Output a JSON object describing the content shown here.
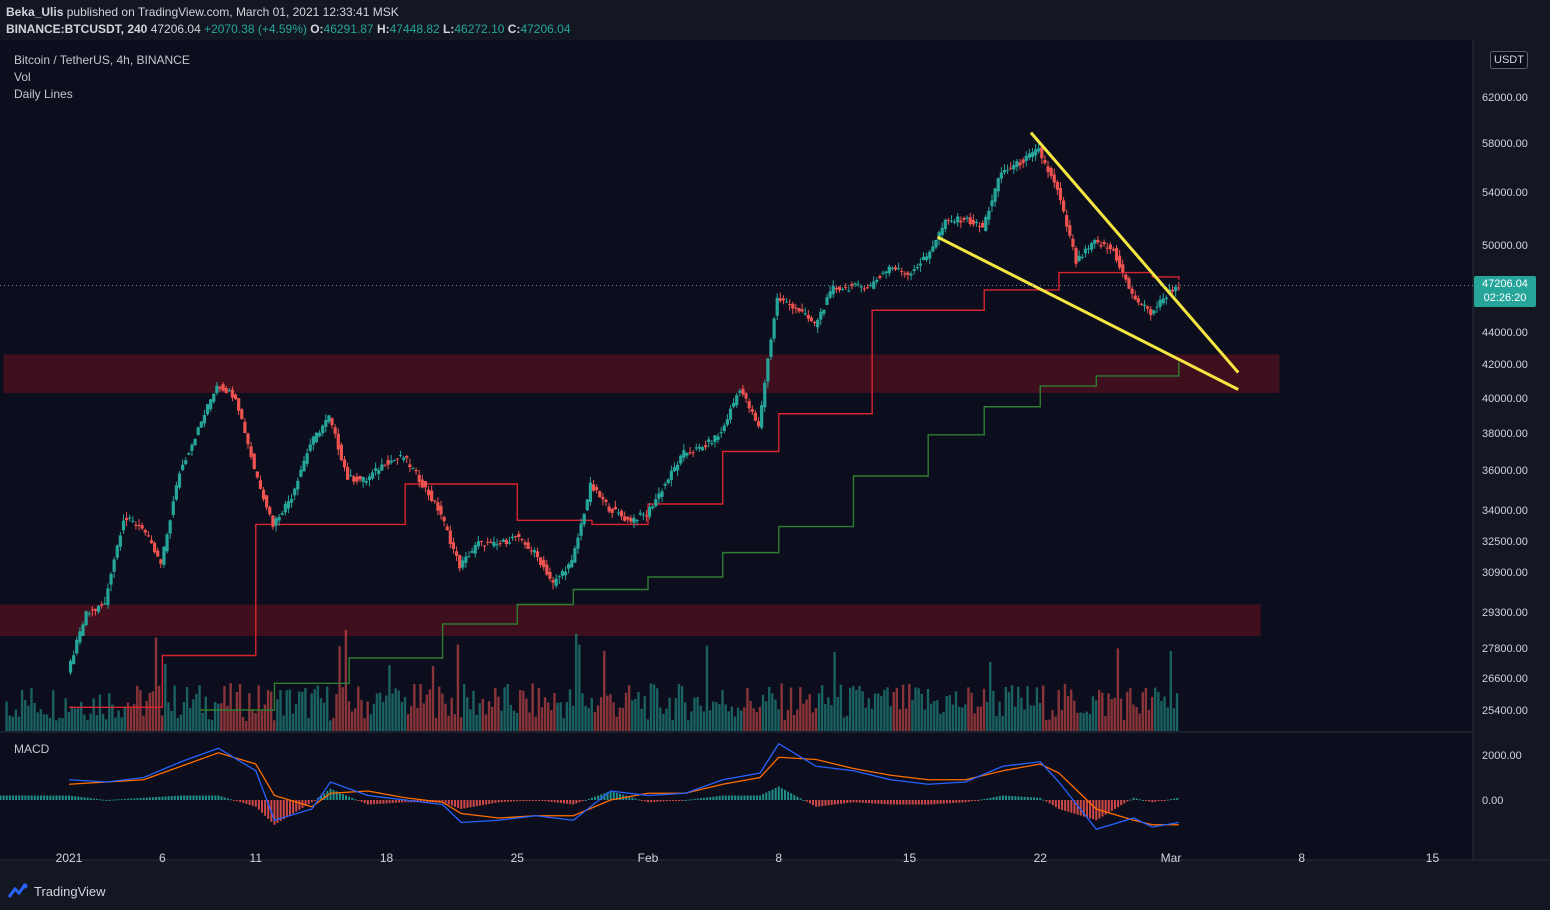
{
  "header": {
    "author": "Beka_Ulis",
    "published_text": "published on TradingView.com, March 01, 2021 12:33:41 MSK",
    "symbol": "BINANCE:BTCUSDT, 240",
    "last": "47206.04",
    "change": "+2070.38 (+4.59%)",
    "o_label": "O:",
    "o_value": "46291.87",
    "h_label": "H:",
    "h_value": "47448.82",
    "l_label": "L:",
    "l_value": "46272.10",
    "c_label": "C:",
    "c_value": "47206.04"
  },
  "legend": {
    "title": "Bitcoin / TetherUS, 4h, BINANCE",
    "vol": "Vol",
    "daily_lines": "Daily Lines",
    "macd": "MACD"
  },
  "currency_badge": "USDT",
  "last_price_tag": {
    "price": "47206.04",
    "countdown": "02:26:20"
  },
  "footer": {
    "brand": "TradingView"
  },
  "colors": {
    "background": "#0c0e1d",
    "up": "#26a69a",
    "down": "#ef5350",
    "zone": "#4a0f1f",
    "trendline": "#f5e642",
    "red_line": "#d8242f",
    "green_line": "#2e7d32",
    "macd_line": "#2962ff",
    "signal_line": "#ff6d00"
  },
  "chart_data": {
    "type": "candlestick",
    "title": "Bitcoin / TetherUS, 4h, BINANCE",
    "price_ticks": [
      "62000.00",
      "58000.00",
      "54000.00",
      "50000.00",
      "44000.00",
      "42000.00",
      "40000.00",
      "38000.00",
      "36000.00",
      "34000.00",
      "32500.00",
      "30900.00",
      "29300.00",
      "27800.00",
      "26600.00",
      "25400.00"
    ],
    "price_tick_values": [
      62000,
      58000,
      54000,
      50000,
      44000,
      42000,
      40000,
      38000,
      36000,
      34000,
      32500,
      30900,
      29300,
      27800,
      26600,
      25400
    ],
    "time_ticks": [
      {
        "label": "2021",
        "day": 0
      },
      {
        "label": "6",
        "day": 5
      },
      {
        "label": "11",
        "day": 10
      },
      {
        "label": "18",
        "day": 17
      },
      {
        "label": "25",
        "day": 24
      },
      {
        "label": "Feb",
        "day": 31
      },
      {
        "label": "8",
        "day": 38
      },
      {
        "label": "15",
        "day": 45
      },
      {
        "label": "22",
        "day": 52
      },
      {
        "label": "Mar",
        "day": 59
      },
      {
        "label": "8",
        "day": 66
      },
      {
        "label": "15",
        "day": 73
      }
    ],
    "price_path": [
      [
        0,
        26800
      ],
      [
        1,
        29200
      ],
      [
        2,
        29600
      ],
      [
        3,
        33600
      ],
      [
        4,
        33200
      ],
      [
        5,
        31300
      ],
      [
        6,
        35900
      ],
      [
        7,
        38200
      ],
      [
        8,
        40800
      ],
      [
        9,
        40100
      ],
      [
        10,
        36100
      ],
      [
        11,
        33300
      ],
      [
        12,
        34700
      ],
      [
        13,
        37400
      ],
      [
        14,
        38900
      ],
      [
        15,
        35600
      ],
      [
        16,
        35500
      ],
      [
        17,
        36400
      ],
      [
        18,
        36700
      ],
      [
        19,
        35300
      ],
      [
        20,
        33800
      ],
      [
        21,
        31200
      ],
      [
        22,
        32400
      ],
      [
        23,
        32300
      ],
      [
        24,
        32700
      ],
      [
        25,
        31900
      ],
      [
        26,
        30400
      ],
      [
        27,
        31400
      ],
      [
        28,
        35200
      ],
      [
        29,
        34100
      ],
      [
        30,
        33500
      ],
      [
        31,
        33800
      ],
      [
        32,
        35300
      ],
      [
        33,
        36900
      ],
      [
        34,
        37200
      ],
      [
        35,
        38000
      ],
      [
        36,
        40600
      ],
      [
        37,
        38300
      ],
      [
        38,
        46300
      ],
      [
        39,
        45700
      ],
      [
        40,
        44500
      ],
      [
        41,
        47000
      ],
      [
        42,
        47100
      ],
      [
        43,
        47200
      ],
      [
        44,
        48500
      ],
      [
        45,
        48000
      ],
      [
        46,
        49200
      ],
      [
        47,
        51700
      ],
      [
        48,
        52000
      ],
      [
        49,
        51300
      ],
      [
        50,
        55600
      ],
      [
        51,
        56400
      ],
      [
        52,
        57400
      ],
      [
        53,
        54100
      ],
      [
        54,
        48800
      ],
      [
        55,
        50200
      ],
      [
        56,
        49600
      ],
      [
        57,
        46500
      ],
      [
        58,
        45300
      ],
      [
        59,
        46800
      ],
      [
        59.42,
        47206.04
      ]
    ],
    "daily_red_line": [
      [
        0,
        25500
      ],
      [
        5,
        27500
      ],
      [
        10,
        33300
      ],
      [
        18,
        35300
      ],
      [
        24,
        33500
      ],
      [
        28,
        33300
      ],
      [
        31,
        34300
      ],
      [
        35,
        37000
      ],
      [
        38,
        39100
      ],
      [
        43,
        45500
      ],
      [
        49,
        46900
      ],
      [
        53,
        48100
      ],
      [
        58,
        47800
      ],
      [
        59.42,
        47600
      ]
    ],
    "daily_green_line": [
      [
        7,
        25400
      ],
      [
        11,
        26400
      ],
      [
        15,
        27400
      ],
      [
        20,
        28800
      ],
      [
        24,
        29600
      ],
      [
        27,
        30200
      ],
      [
        31,
        30700
      ],
      [
        35,
        31900
      ],
      [
        38,
        33200
      ],
      [
        42,
        35700
      ],
      [
        46,
        37900
      ],
      [
        49,
        39500
      ],
      [
        52,
        40700
      ],
      [
        55,
        41300
      ],
      [
        59.42,
        42100
      ]
    ],
    "zones": [
      {
        "from_day": -3.5,
        "to_day": 64.8,
        "low": 40300,
        "high": 42600
      },
      {
        "from_day": -4.5,
        "to_day": 63.8,
        "low": 28300,
        "high": 29600
      }
    ],
    "trendlines": [
      {
        "from": [
          51.5,
          58900
        ],
        "to": [
          62.6,
          41500
        ]
      },
      {
        "from": [
          46.5,
          50600
        ],
        "to": [
          62.6,
          40500
        ]
      }
    ],
    "macd_ticks": [
      {
        "label": "2000.00",
        "value": 2000
      },
      {
        "label": "0.00",
        "value": 0
      }
    ],
    "macd_path": [
      [
        0,
        900
      ],
      [
        2,
        800
      ],
      [
        4,
        1000
      ],
      [
        6,
        1700
      ],
      [
        8,
        2300
      ],
      [
        10,
        1300
      ],
      [
        11,
        -900
      ],
      [
        13,
        -400
      ],
      [
        14,
        800
      ],
      [
        16,
        200
      ],
      [
        18,
        0
      ],
      [
        20,
        -200
      ],
      [
        21,
        -1000
      ],
      [
        23,
        -900
      ],
      [
        25,
        -700
      ],
      [
        27,
        -900
      ],
      [
        29,
        400
      ],
      [
        31,
        200
      ],
      [
        33,
        300
      ],
      [
        35,
        900
      ],
      [
        37,
        1200
      ],
      [
        38,
        2500
      ],
      [
        40,
        1500
      ],
      [
        42,
        1300
      ],
      [
        44,
        900
      ],
      [
        46,
        700
      ],
      [
        48,
        800
      ],
      [
        50,
        1500
      ],
      [
        52,
        1700
      ],
      [
        53,
        800
      ],
      [
        55,
        -1300
      ],
      [
        57,
        -800
      ],
      [
        58,
        -1200
      ],
      [
        59.42,
        -1000
      ]
    ],
    "signal_path": [
      [
        0,
        700
      ],
      [
        2,
        800
      ],
      [
        4,
        900
      ],
      [
        6,
        1500
      ],
      [
        8,
        2100
      ],
      [
        10,
        1600
      ],
      [
        11,
        200
      ],
      [
        13,
        -300
      ],
      [
        14,
        300
      ],
      [
        16,
        400
      ],
      [
        18,
        100
      ],
      [
        20,
        -100
      ],
      [
        21,
        -600
      ],
      [
        23,
        -800
      ],
      [
        25,
        -700
      ],
      [
        27,
        -700
      ],
      [
        29,
        0
      ],
      [
        31,
        300
      ],
      [
        33,
        300
      ],
      [
        35,
        700
      ],
      [
        37,
        1000
      ],
      [
        38,
        1900
      ],
      [
        40,
        1800
      ],
      [
        42,
        1400
      ],
      [
        44,
        1100
      ],
      [
        46,
        900
      ],
      [
        48,
        900
      ],
      [
        50,
        1300
      ],
      [
        52,
        1600
      ],
      [
        53,
        1200
      ],
      [
        55,
        -400
      ],
      [
        57,
        -900
      ],
      [
        58,
        -1100
      ],
      [
        59.42,
        -1100
      ]
    ]
  }
}
